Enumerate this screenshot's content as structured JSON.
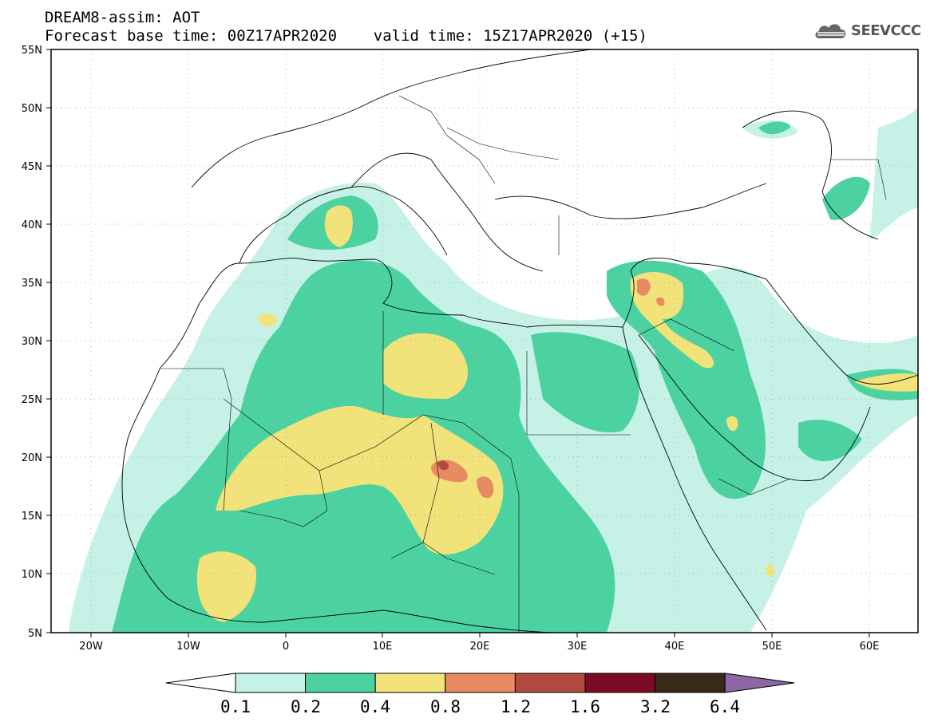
{
  "header": {
    "line1": "DREAM8-assim: AOT",
    "line2": "Forecast base time: 00Z17APR2020    valid time: 15Z17APR2020 (+15)"
  },
  "logo": {
    "text": "SEEVCCC",
    "icon": "cloud-icon"
  },
  "map": {
    "lat_labels": [
      "55N",
      "50N",
      "45N",
      "40N",
      "35N",
      "30N",
      "25N",
      "20N",
      "15N",
      "10N",
      "5N"
    ],
    "lon_labels": [
      "20W",
      "10W",
      "0",
      "10E",
      "20E",
      "30E",
      "40E",
      "50E",
      "60E"
    ],
    "lon_range": [
      -25,
      65
    ],
    "lat_range": [
      5,
      55
    ]
  },
  "legend": {
    "colors": [
      "#ffffff",
      "#c6f1e6",
      "#4cd2a0",
      "#f2e27a",
      "#e88a62",
      "#b24b3f",
      "#7b0a25",
      "#3a2a1c",
      "#8b67a6"
    ],
    "labels": [
      "0.1",
      "0.2",
      "0.4",
      "0.8",
      "1.2",
      "1.6",
      "3.2",
      "6.4"
    ]
  }
}
